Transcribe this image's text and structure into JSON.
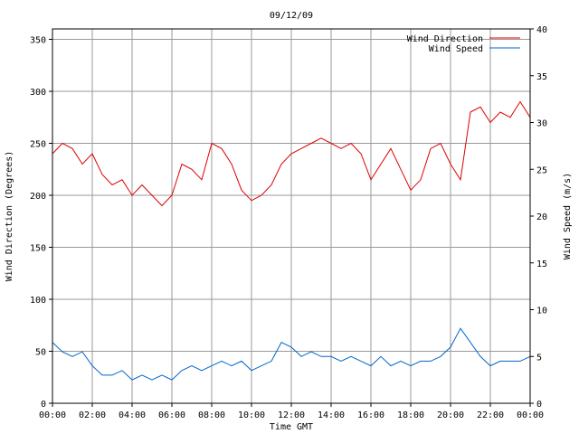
{
  "chart_data": {
    "type": "line",
    "title": "09/12/09",
    "xlabel": "Time GMT",
    "ylabel_left": "Wind Direction (Degrees)",
    "ylabel_right": "Wind Speed (m/s)",
    "x_ticks": [
      "00:00",
      "02:00",
      "04:00",
      "06:00",
      "08:00",
      "10:00",
      "12:00",
      "14:00",
      "16:00",
      "18:00",
      "20:00",
      "22:00",
      "00:00"
    ],
    "xlim_hours": [
      0,
      24
    ],
    "ylim_left": [
      0,
      360
    ],
    "ylim_right": [
      0,
      40
    ],
    "y_ticks_left": [
      0,
      50,
      100,
      150,
      200,
      250,
      300,
      350
    ],
    "y_ticks_right": [
      0,
      5,
      10,
      15,
      20,
      25,
      30,
      35,
      40
    ],
    "grid": true,
    "legend_position": "top-right",
    "series": [
      {
        "name": "Wind Direction",
        "axis": "left",
        "color": "#dd0000",
        "x": [
          0,
          0.5,
          1,
          1.5,
          2,
          2.5,
          3,
          3.5,
          4,
          4.5,
          5,
          5.5,
          6,
          6.5,
          7,
          7.5,
          8,
          8.5,
          9,
          9.5,
          10,
          10.5,
          11,
          11.5,
          12,
          12.5,
          13,
          13.5,
          14,
          14.5,
          15,
          15.5,
          16,
          16.5,
          17,
          17.5,
          18,
          18.5,
          19,
          19.5,
          20,
          20.5,
          21,
          21.5,
          22,
          22.5,
          23,
          23.5,
          24
        ],
        "values": [
          240,
          250,
          245,
          230,
          240,
          220,
          210,
          215,
          200,
          210,
          200,
          190,
          200,
          230,
          225,
          215,
          250,
          245,
          230,
          205,
          195,
          200,
          210,
          230,
          240,
          245,
          250,
          255,
          250,
          245,
          250,
          240,
          215,
          230,
          245,
          225,
          205,
          215,
          245,
          250,
          230,
          215,
          280,
          285,
          270,
          280,
          275,
          290,
          275
        ]
      },
      {
        "name": "Wind Speed",
        "axis": "right",
        "color": "#0066cc",
        "x": [
          0,
          0.5,
          1,
          1.5,
          2,
          2.5,
          3,
          3.5,
          4,
          4.5,
          5,
          5.5,
          6,
          6.5,
          7,
          7.5,
          8,
          8.5,
          9,
          9.5,
          10,
          10.5,
          11,
          11.5,
          12,
          12.5,
          13,
          13.5,
          14,
          14.5,
          15,
          15.5,
          16,
          16.5,
          17,
          17.5,
          18,
          18.5,
          19,
          19.5,
          20,
          20.5,
          21,
          21.5,
          22,
          22.5,
          23,
          23.5,
          24
        ],
        "values": [
          6.5,
          5.5,
          5,
          5.5,
          4,
          3,
          3,
          3.5,
          2.5,
          3,
          2.5,
          3,
          2.5,
          3.5,
          4,
          3.5,
          4,
          4.5,
          4,
          4.5,
          3.5,
          4,
          4.5,
          6.5,
          6,
          5,
          5.5,
          5,
          5,
          4.5,
          5,
          4.5,
          4,
          5,
          4,
          4.5,
          4,
          4.5,
          4.5,
          5,
          6,
          8,
          6.5,
          5,
          4,
          4.5,
          4.5,
          4.5,
          5
        ]
      }
    ]
  }
}
